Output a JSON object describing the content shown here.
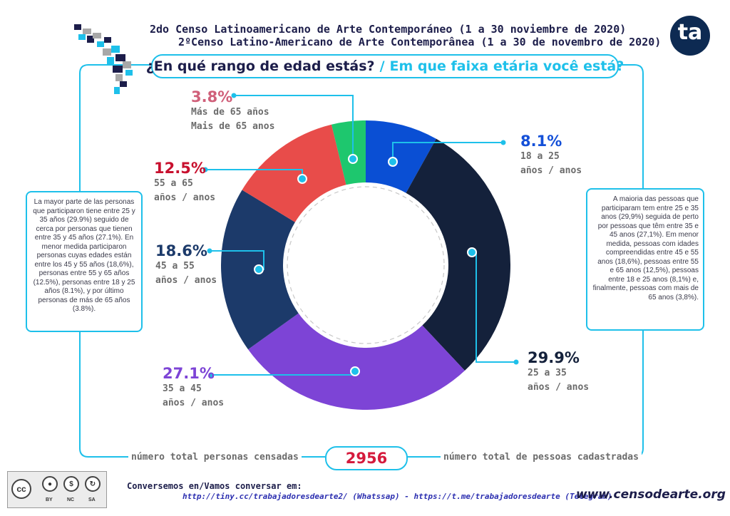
{
  "header": {
    "title_es": "2do Censo Latinoamericano de Arte Contemporáneo (1 a 30 noviembre de 2020)",
    "title_pt": "2ºCenso Latino-Americano de Arte Contemporânea (1 a 30 de novembro de 2020)",
    "question_es": "¿En qué rango de edad estás?",
    "question_sep": "/",
    "question_pt": "Em que faixa etária você está?"
  },
  "logo": {
    "text": "ta"
  },
  "chart_data": {
    "type": "pie",
    "variant": "donut",
    "start_angle_deg": 0,
    "direction": "clockwise",
    "slices": [
      {
        "key": "s18",
        "value": 8.1,
        "pct_label": "8.1%",
        "label_line1": "18 a 25",
        "label_line2": "años / anos",
        "color": "#0a4fd4"
      },
      {
        "key": "s25",
        "value": 29.9,
        "pct_label": "29.9%",
        "label_line1": "25 a 35",
        "label_line2": "años / anos",
        "color": "#14213b"
      },
      {
        "key": "s35",
        "value": 27.1,
        "pct_label": "27.1%",
        "label_line1": "35 a 45",
        "label_line2": "años / anos",
        "color": "#7d44d6"
      },
      {
        "key": "s45",
        "value": 18.6,
        "pct_label": "18.6%",
        "label_line1": "45 a 55",
        "label_line2": "años / anos",
        "color": "#1c3a6a"
      },
      {
        "key": "s55",
        "value": 12.5,
        "pct_label": "12.5%",
        "label_line1": "55 a 65",
        "label_line2": "años / anos",
        "color": "#e84c4a"
      },
      {
        "key": "s65",
        "value": 3.8,
        "pct_label": "3.8%",
        "label_line1": "Más de 65 años",
        "label_line2": "Mais de 65 anos",
        "color": "#1ec76e"
      }
    ]
  },
  "label_colors": {
    "s18": "#1450d8",
    "s25": "#14213b",
    "s35": "#7d44d6",
    "s45": "#1c3a6a",
    "s55": "#c8102e",
    "s65": "#d0607a"
  },
  "accent_color": "#1ec0ea",
  "text_es": "La mayor parte de las personas que participaron tiene entre 25 y 35 años (29.9%) seguido de cerca por personas que tienen entre 35 y 45 años (27.1%). En menor medida participaron personas cuyas edades están entre los 45 y 55 años (18,6%), personas entre 55 y 65 años (12.5%), personas entre 18 y 25 años (8.1%), y por último personas de más de 65 años (3.8%).",
  "text_pt": "A maioria das pessoas que participaram tem entre 25 e 35 anos (29,9%) seguida de perto por pessoas que têm entre 35 e 45 anos (27,1%). Em menor medida, pessoas com idades compreendidas entre 45 e 55 anos (18,6%), pessoas entre 55 e 65 anos (12,5%), pessoas entre 18 e 25 anos (8,1%) e, finalmente, pessoas com mais de 65 anos (3,8%).",
  "total": {
    "label_es": "número total personas censadas",
    "value": "2956",
    "label_pt": "número total de pessoas cadastradas"
  },
  "footer": {
    "contact_line1": "Conversemos en/Vamos conversar em:",
    "contact_line2": "http://tiny.cc/trabajadoresdearte2/ (Whatssap) - https://t.me/trabajadoresdearte (Telegram)",
    "website": "www.censodearte.org",
    "license": {
      "by": "BY",
      "nc": "NC",
      "sa": "SA",
      "cc": "cc"
    }
  }
}
